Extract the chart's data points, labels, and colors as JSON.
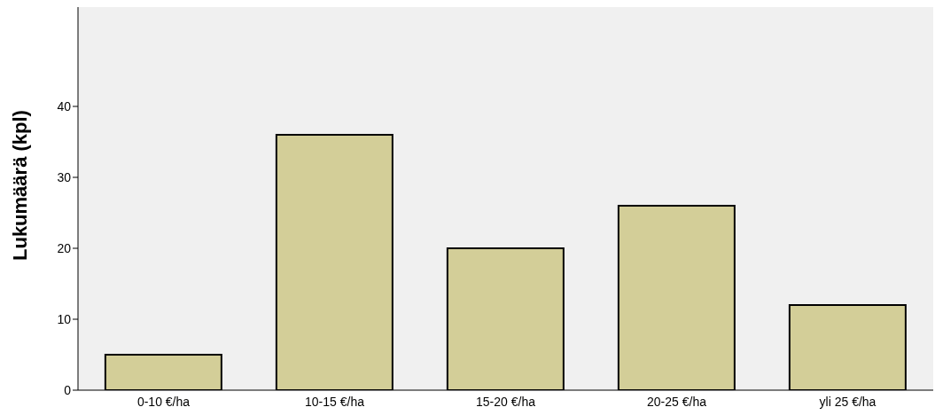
{
  "chart_data": {
    "type": "bar",
    "ylabel": "Lukumäärä (kpl)",
    "categories": [
      "0-10 €/ha",
      "10-15 €/ha",
      "15-20 €/ha",
      "20-25 €/ha",
      "yli 25 €/ha"
    ],
    "values": [
      5,
      36,
      20,
      26,
      12
    ],
    "color": "#d3ce98",
    "ylim": [
      0,
      54
    ],
    "yticks": [
      0,
      10,
      20,
      30,
      40
    ],
    "grid": false
  }
}
